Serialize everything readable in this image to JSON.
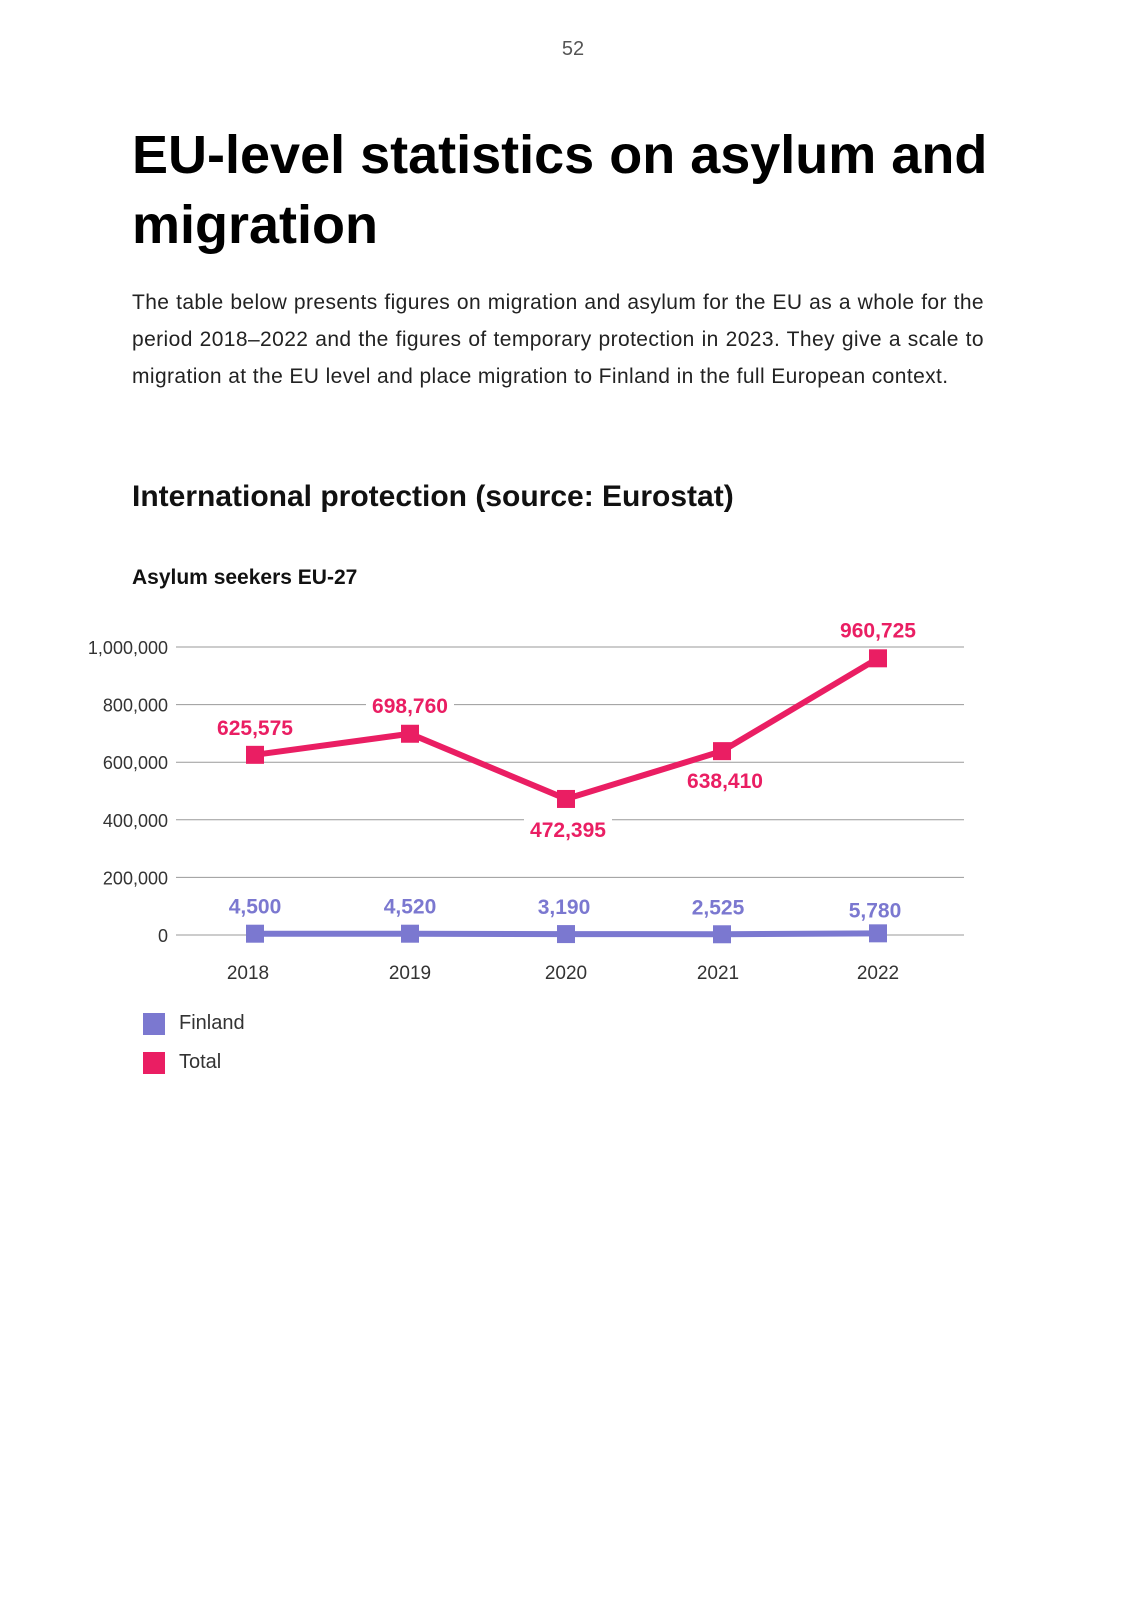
{
  "page_number": "52",
  "title": "EU-level statistics on asylum and migration",
  "intro": "The table below presents figures on migration and asylum for the EU as a whole for the period 2018–2022 and the figures of temporary protection in 2023. They give a scale to migration at the EU level and place migration to Finland in the full European context.",
  "section_title": "International protection (source: Eurostat)",
  "chart_data": {
    "type": "line",
    "title": "Asylum seekers EU-27",
    "categories": [
      "2018",
      "2019",
      "2020",
      "2021",
      "2022"
    ],
    "ylim": [
      0,
      1000000
    ],
    "yticks": [
      0,
      200000,
      400000,
      600000,
      800000,
      1000000
    ],
    "ytick_labels": [
      "0",
      "200,000",
      "400,000",
      "600,000",
      "800,000",
      "1,000,000"
    ],
    "grid": true,
    "legend_position": "bottom-left",
    "series": [
      {
        "name": "Finland",
        "color": "#7b78d0",
        "values": [
          4500,
          4520,
          3190,
          2525,
          5780
        ],
        "labels": [
          "4,500",
          "4,520",
          "3,190",
          "2,525",
          "5,780"
        ]
      },
      {
        "name": "Total",
        "color": "#ea1e63",
        "values": [
          625575,
          698760,
          472395,
          638410,
          960725
        ],
        "labels": [
          "625,575",
          "698,760",
          "472,395",
          "638,410",
          "960,725"
        ]
      }
    ]
  }
}
